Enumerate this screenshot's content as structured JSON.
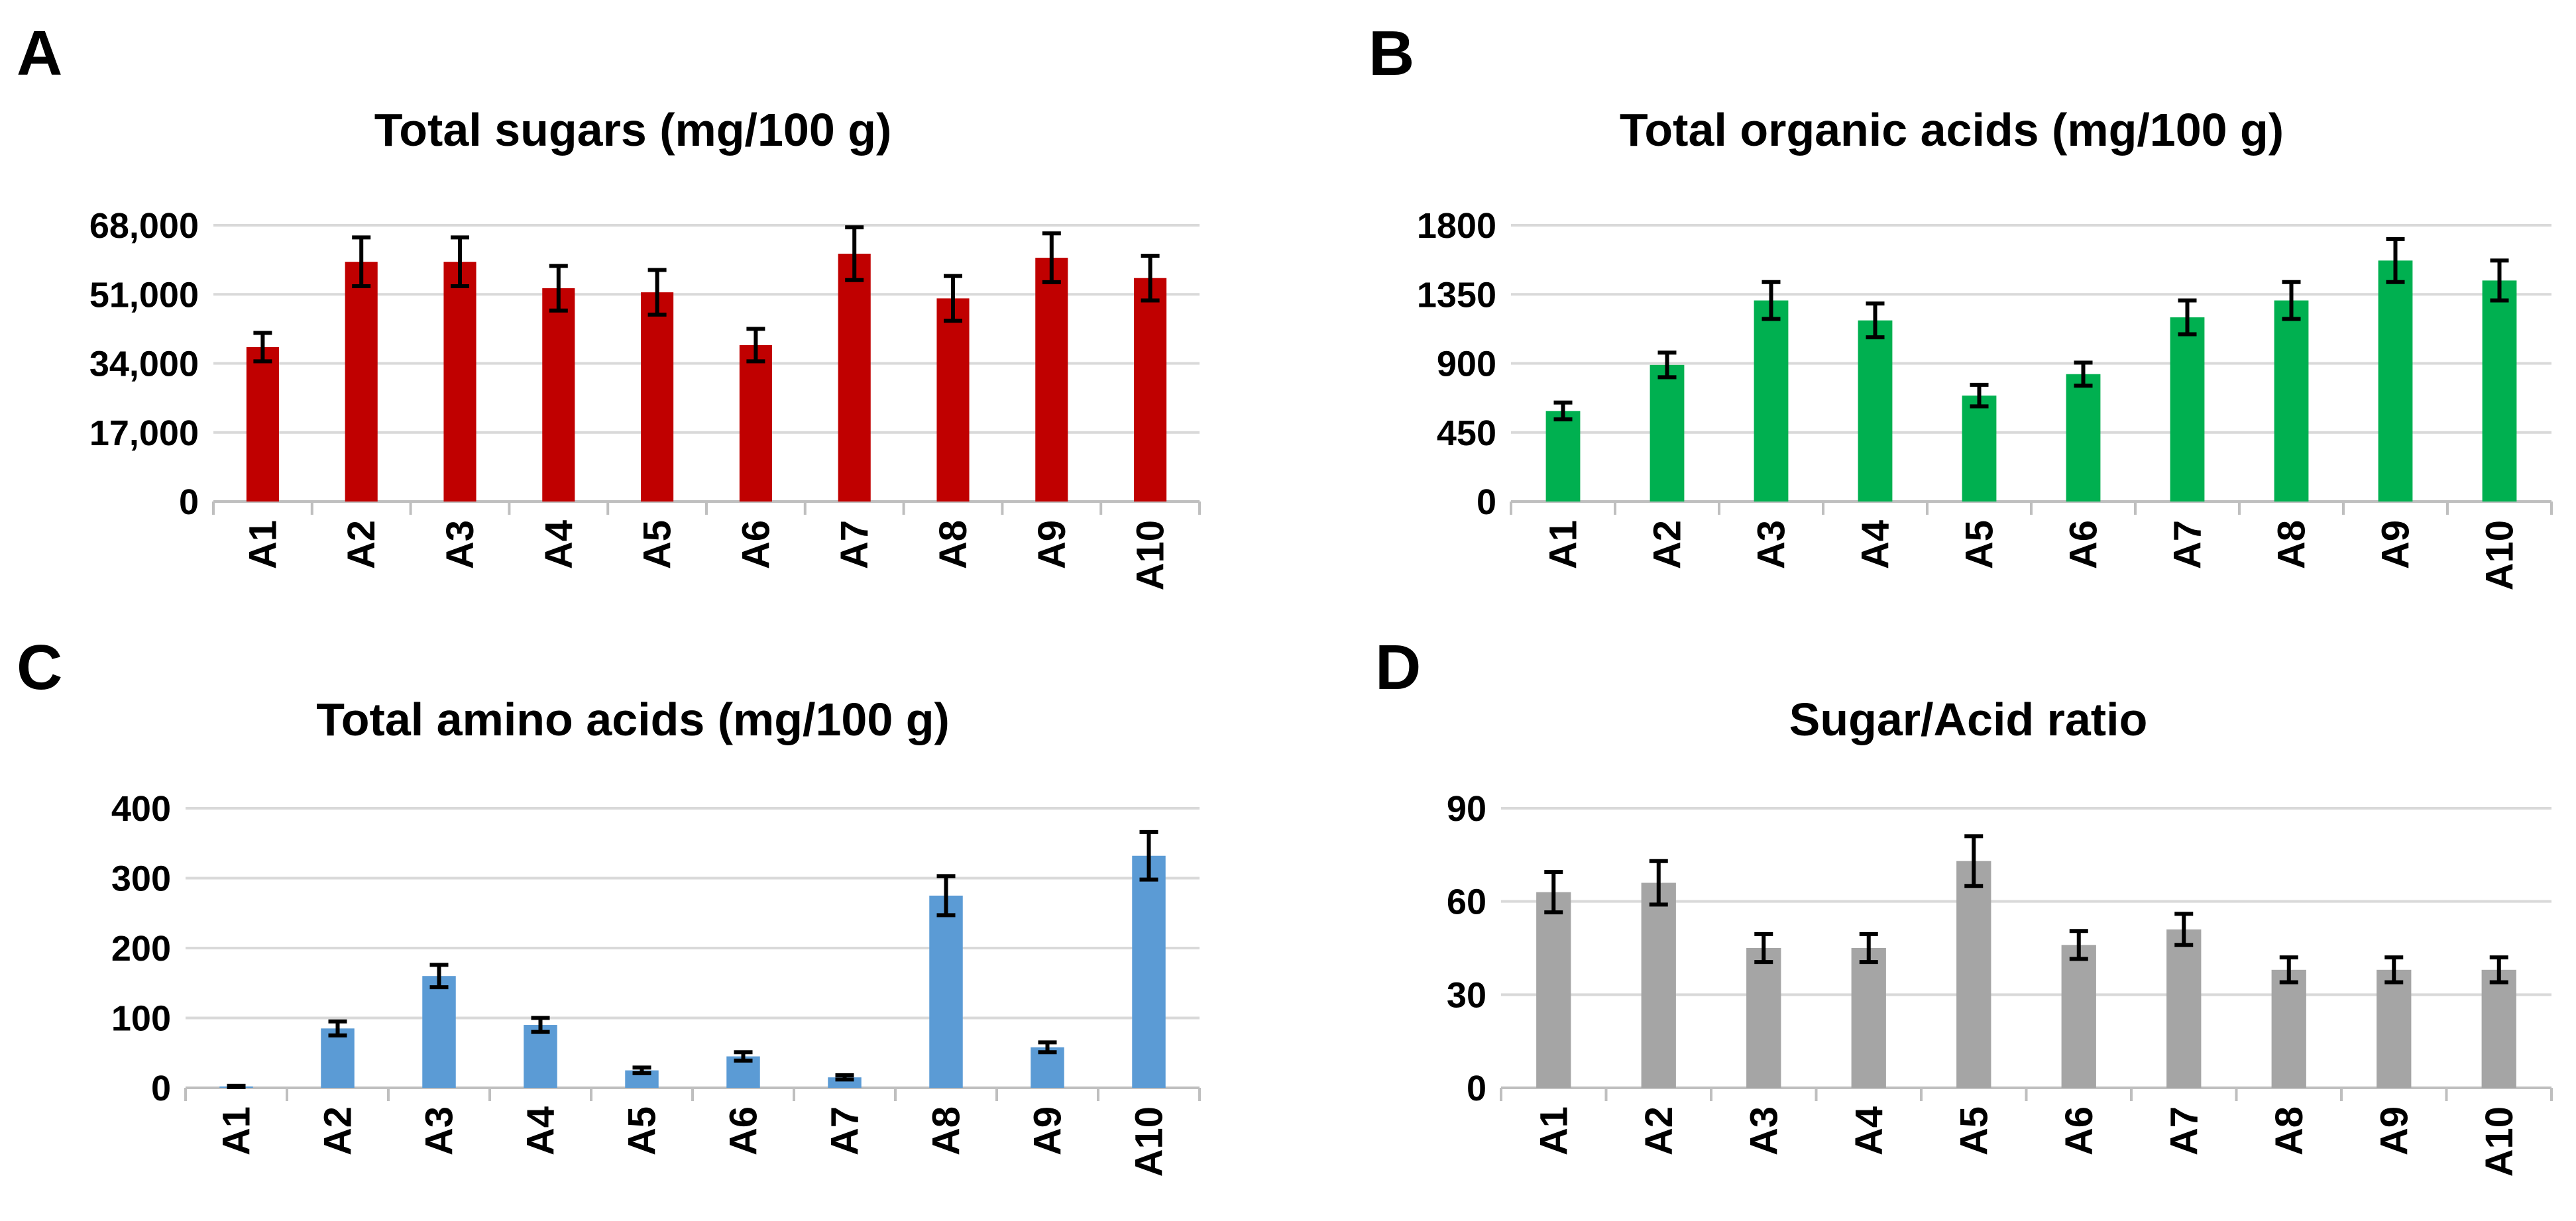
{
  "chart_data": [
    {
      "letter": "A",
      "type": "bar",
      "title": "Total sugars (mg/100 g)",
      "color": "#c00000",
      "categories": [
        "A1",
        "A2",
        "A3",
        "A4",
        "A5",
        "A6",
        "A7",
        "A8",
        "A9",
        "A10"
      ],
      "values": [
        38000,
        59000,
        59000,
        52500,
        51500,
        38500,
        61000,
        50000,
        60000,
        55000
      ],
      "errors": [
        3500,
        6000,
        6000,
        5500,
        5500,
        4000,
        6500,
        5500,
        6000,
        5500
      ],
      "ylim": [
        0,
        68000
      ],
      "yticks": [
        0,
        17000,
        34000,
        51000,
        68000
      ],
      "ytick_labels": [
        "0",
        "17,000",
        "34,000",
        "51,000",
        "68,000"
      ]
    },
    {
      "letter": "B",
      "type": "bar",
      "title": "Total organic acids (mg/100 g)",
      "color": "#00b050",
      "categories": [
        "A1",
        "A2",
        "A3",
        "A4",
        "A5",
        "A6",
        "A7",
        "A8",
        "A9",
        "A10"
      ],
      "values": [
        590,
        890,
        1310,
        1180,
        690,
        830,
        1200,
        1310,
        1570,
        1440
      ],
      "errors": [
        55,
        80,
        120,
        110,
        70,
        75,
        110,
        120,
        140,
        130
      ],
      "ylim": [
        0,
        1800
      ],
      "yticks": [
        0,
        450,
        900,
        1350,
        1800
      ],
      "ytick_labels": [
        "0",
        "450",
        "900",
        "1350",
        "1800"
      ]
    },
    {
      "letter": "C",
      "type": "bar",
      "title": "Total amino acids (mg/100 g)",
      "color": "#5b9bd5",
      "categories": [
        "A1",
        "A2",
        "A3",
        "A4",
        "A5",
        "A6",
        "A7",
        "A8",
        "A9",
        "A10"
      ],
      "values": [
        2,
        85,
        160,
        90,
        25,
        45,
        15,
        275,
        58,
        332
      ],
      "errors": [
        1,
        10,
        16,
        10,
        4,
        6,
        3,
        28,
        7,
        34
      ],
      "ylim": [
        0,
        400
      ],
      "yticks": [
        0,
        100,
        200,
        300,
        400
      ],
      "ytick_labels": [
        "0",
        "100",
        "200",
        "300",
        "400"
      ]
    },
    {
      "letter": "D",
      "type": "bar",
      "title": "Sugar/Acid ratio",
      "color": "#a5a5a5",
      "categories": [
        "A1",
        "A2",
        "A3",
        "A4",
        "A5",
        "A6",
        "A7",
        "A8",
        "A9",
        "A10"
      ],
      "values": [
        63,
        66,
        45,
        45,
        73,
        46,
        51,
        38,
        38,
        38
      ],
      "errors": [
        6.5,
        7,
        4.5,
        4.5,
        8,
        4.5,
        5,
        4,
        4,
        4
      ],
      "ylim": [
        0,
        90
      ],
      "yticks": [
        0,
        30,
        60,
        90
      ],
      "ytick_labels": [
        "0",
        "30",
        "60",
        "90"
      ]
    }
  ]
}
